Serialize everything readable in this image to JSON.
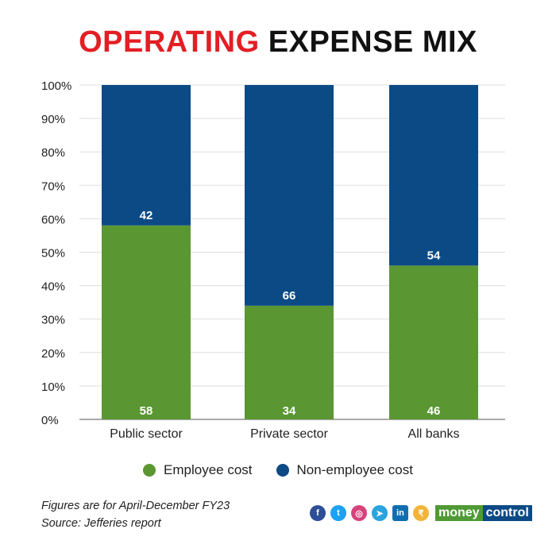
{
  "title": {
    "highlight": "OPERATING",
    "rest": "EXPENSE MIX"
  },
  "colors": {
    "employee": "#5a9632",
    "non_employee": "#0c4a86",
    "title_red": "#e31e24"
  },
  "chart_data": {
    "type": "bar",
    "stacked": true,
    "title": "OPERATING EXPENSE MIX",
    "categories": [
      "Public sector",
      "Private sector",
      "All banks"
    ],
    "series": [
      {
        "name": "Employee cost",
        "values": [
          58,
          34,
          46
        ]
      },
      {
        "name": "Non-employee cost",
        "values": [
          42,
          66,
          54
        ]
      }
    ],
    "yticks": [
      "0%",
      "10%",
      "20%",
      "30%",
      "40%",
      "50%",
      "60%",
      "70%",
      "80%",
      "90%",
      "100%"
    ],
    "ylim": [
      0,
      100
    ],
    "grid": true,
    "legend_placement": "bottom"
  },
  "footer": {
    "note": "Figures are for April-December FY23",
    "source": "Source: Jefferies report"
  },
  "brand": {
    "part1": "money",
    "part2": "control"
  },
  "social_icons": [
    "facebook-icon",
    "twitter-icon",
    "instagram-icon",
    "telegram-icon",
    "linkedin-icon",
    "moneycontrol-app-icon"
  ]
}
